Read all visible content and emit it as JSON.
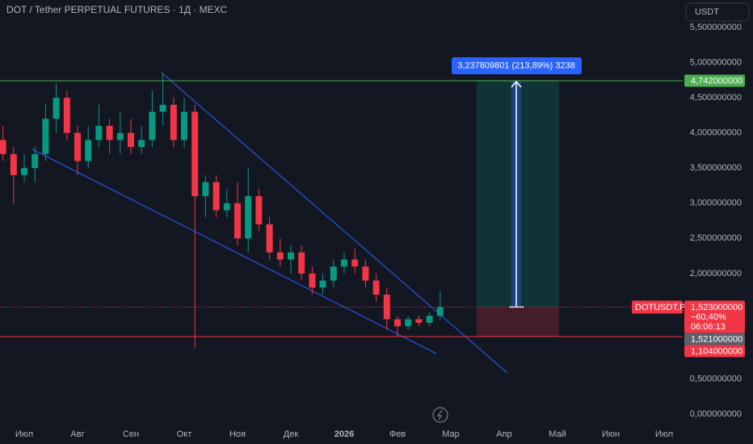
{
  "chart_data": {
    "type": "candlestick",
    "title": "DOT / Tether PERPETUAL FUTURES · 1Д · MEXC",
    "currency": "USDT",
    "categories": [
      null,
      null,
      "Июл",
      null,
      null,
      null,
      null,
      "Авг",
      null,
      null,
      null,
      null,
      "Сен",
      null,
      null,
      null,
      null,
      "Окт",
      null,
      null,
      null,
      null,
      "Ноя",
      null,
      null,
      null,
      null,
      "Дек",
      null,
      null,
      null,
      null,
      "2026",
      null,
      null,
      null,
      null,
      "Фев",
      null,
      null,
      null,
      null,
      "Мар",
      null,
      null,
      null,
      null,
      "Апр",
      null,
      null,
      null,
      null,
      "Май",
      null,
      null,
      null,
      null,
      "Июн",
      null,
      null,
      null,
      null,
      "Июл"
    ],
    "open": [
      3.9,
      3.7,
      3.4,
      3.5,
      3.7,
      4.2,
      4.5,
      4.0,
      3.6,
      3.9,
      4.1,
      3.9,
      4.0,
      3.8,
      3.9,
      4.3,
      4.4,
      3.9,
      4.3,
      3.1,
      3.3,
      2.9,
      3.0,
      2.5,
      3.1,
      2.7,
      2.3,
      2.2,
      2.3,
      2.0,
      1.8,
      1.9,
      2.1,
      2.2,
      2.1,
      1.9,
      1.7,
      1.35,
      1.25,
      1.35,
      1.3,
      1.4,
      null,
      null,
      null,
      null,
      null,
      null,
      null,
      null,
      null,
      null,
      null,
      null,
      null,
      null,
      null,
      null,
      null,
      null,
      null,
      null,
      null
    ],
    "high": [
      4.1,
      3.8,
      3.7,
      3.8,
      4.4,
      4.7,
      4.6,
      4.1,
      4.1,
      4.4,
      4.2,
      4.3,
      4.2,
      4.1,
      4.6,
      4.85,
      4.5,
      4.5,
      4.4,
      3.4,
      3.4,
      3.2,
      3.3,
      3.5,
      3.2,
      2.8,
      2.5,
      2.4,
      2.4,
      2.1,
      2.0,
      2.2,
      2.3,
      2.35,
      2.2,
      2.0,
      1.8,
      1.4,
      1.4,
      1.4,
      1.45,
      1.75,
      null,
      null,
      null,
      null,
      null,
      null,
      null,
      null,
      null,
      null,
      null,
      null,
      null,
      null,
      null,
      null,
      null,
      null,
      null,
      null,
      null
    ],
    "low": [
      3.6,
      3.0,
      3.3,
      3.3,
      3.6,
      4.0,
      3.9,
      3.4,
      3.5,
      3.8,
      3.7,
      3.7,
      3.7,
      3.7,
      3.8,
      4.1,
      3.8,
      3.8,
      0.95,
      2.8,
      2.8,
      2.8,
      2.4,
      2.3,
      2.6,
      2.2,
      2.1,
      2.0,
      1.9,
      1.7,
      1.7,
      1.8,
      2.0,
      2.0,
      1.8,
      1.6,
      1.2,
      1.1,
      1.2,
      1.25,
      1.25,
      1.35,
      null,
      null,
      null,
      null,
      null,
      null,
      null,
      null,
      null,
      null,
      null,
      null,
      null,
      null,
      null,
      null,
      null,
      null,
      null,
      null,
      null
    ],
    "close": [
      3.7,
      3.4,
      3.5,
      3.7,
      4.2,
      4.5,
      4.0,
      3.6,
      3.9,
      4.1,
      3.9,
      4.0,
      3.8,
      3.9,
      4.3,
      4.4,
      3.9,
      4.3,
      3.1,
      3.3,
      2.9,
      3.0,
      2.5,
      3.1,
      2.7,
      2.3,
      2.2,
      2.3,
      2.0,
      1.8,
      1.9,
      2.1,
      2.2,
      2.1,
      1.9,
      1.7,
      1.35,
      1.25,
      1.35,
      1.3,
      1.4,
      1.523,
      null,
      null,
      null,
      null,
      null,
      null,
      null,
      null,
      null,
      null,
      null,
      null,
      null,
      null,
      null,
      null,
      null,
      null,
      null,
      null,
      null
    ],
    "up_color": "#089981",
    "down_color": "#f23645",
    "ylim": [
      -0.16,
      5.89
    ],
    "yticks": [
      {
        "value": 5.5,
        "label": "5,500000000"
      },
      {
        "value": 5.0,
        "label": "5,000000000"
      },
      {
        "value": 4.5,
        "label": "4,500000000"
      },
      {
        "value": 4.0,
        "label": "4,000000000"
      },
      {
        "value": 3.5,
        "label": "3,500000000"
      },
      {
        "value": 3.0,
        "label": "3,000000000"
      },
      {
        "value": 2.5,
        "label": "2,500000000"
      },
      {
        "value": 2.0,
        "label": "2,000000000"
      },
      {
        "value": 0.5,
        "label": "0,500000000"
      },
      {
        "value": 0,
        "label": "0,000000000"
      }
    ],
    "position": {
      "label": "3,237809801 (213,89%) 3238",
      "target": {
        "value": 4.742,
        "label": "4,742000000",
        "color": "#4caf50"
      },
      "stop": {
        "value": 1.104,
        "label": "1,104000000",
        "color": "#f23645"
      }
    },
    "last_price": {
      "symbol": "DOTUSDT.P",
      "value": 1.523,
      "label": "1,523000000",
      "change": "−60,40%",
      "countdown": "06:06:13",
      "color": "#f23645"
    },
    "mark_price": {
      "value": 1.521,
      "label": "1,521000000",
      "color": "#5d606b"
    }
  }
}
